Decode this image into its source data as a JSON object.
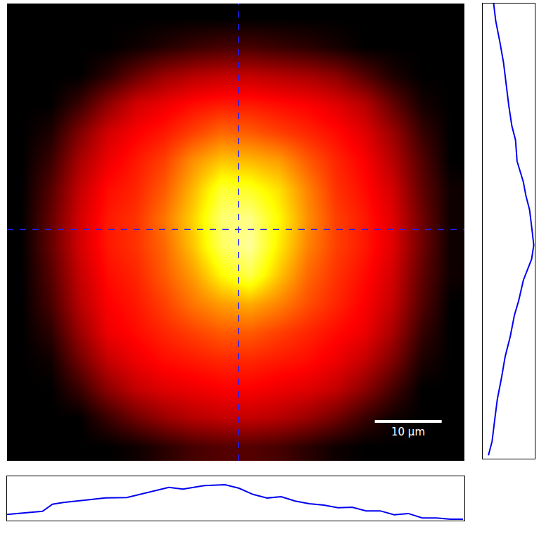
{
  "chart_data": {
    "type": "heatmap",
    "tick_labels": false,
    "xlim": [
      0,
      68.4
    ],
    "ylim": [
      68.4,
      0
    ],
    "zlim": [
      0,
      1
    ],
    "x": [
      2.14,
      6.41,
      10.69,
      14.96,
      19.24,
      23.51,
      27.79,
      32.06,
      36.34,
      40.61,
      44.89,
      49.16,
      53.44,
      57.71,
      61.99,
      66.26
    ],
    "y": [
      2.14,
      6.41,
      10.69,
      14.96,
      19.24,
      23.51,
      27.79,
      32.06,
      36.34,
      40.61,
      44.89,
      49.16,
      53.44,
      57.71,
      61.99,
      66.26
    ],
    "cells": [
      [
        0,
        0,
        0,
        0,
        0,
        0,
        0,
        0,
        0,
        0,
        0,
        0,
        0,
        0,
        0,
        0
      ],
      [
        0,
        0,
        0,
        0,
        0.02,
        0.05,
        0.08,
        0.1,
        0.1,
        0.08,
        0.06,
        0.03,
        0,
        0,
        0,
        0
      ],
      [
        0,
        0,
        0,
        0.06,
        0.15,
        0.22,
        0.26,
        0.28,
        0.28,
        0.26,
        0.24,
        0.2,
        0.12,
        0.04,
        0,
        0
      ],
      [
        0,
        0,
        0.08,
        0.2,
        0.3,
        0.34,
        0.38,
        0.4,
        0.4,
        0.38,
        0.36,
        0.32,
        0.26,
        0.14,
        0.03,
        0
      ],
      [
        0,
        0.04,
        0.18,
        0.3,
        0.36,
        0.4,
        0.46,
        0.52,
        0.5,
        0.46,
        0.42,
        0.38,
        0.32,
        0.22,
        0.08,
        0
      ],
      [
        0,
        0.08,
        0.24,
        0.34,
        0.4,
        0.46,
        0.58,
        0.66,
        0.64,
        0.6,
        0.5,
        0.42,
        0.36,
        0.26,
        0.12,
        0
      ],
      [
        0,
        0.12,
        0.28,
        0.38,
        0.42,
        0.5,
        0.64,
        0.8,
        0.78,
        0.7,
        0.56,
        0.44,
        0.38,
        0.3,
        0.14,
        0.02
      ],
      [
        0,
        0.14,
        0.3,
        0.4,
        0.44,
        0.54,
        0.68,
        0.86,
        0.88,
        0.74,
        0.58,
        0.46,
        0.4,
        0.32,
        0.16,
        0.02
      ],
      [
        0,
        0.14,
        0.3,
        0.4,
        0.44,
        0.52,
        0.66,
        0.84,
        0.9,
        0.72,
        0.56,
        0.46,
        0.4,
        0.32,
        0.16,
        0.02
      ],
      [
        0,
        0.12,
        0.28,
        0.38,
        0.42,
        0.5,
        0.6,
        0.74,
        0.82,
        0.66,
        0.52,
        0.44,
        0.38,
        0.3,
        0.14,
        0.02
      ],
      [
        0,
        0.1,
        0.26,
        0.36,
        0.4,
        0.46,
        0.54,
        0.6,
        0.62,
        0.56,
        0.48,
        0.42,
        0.36,
        0.28,
        0.12,
        0
      ],
      [
        0,
        0.06,
        0.22,
        0.34,
        0.38,
        0.42,
        0.46,
        0.5,
        0.5,
        0.46,
        0.42,
        0.38,
        0.34,
        0.24,
        0.08,
        0
      ],
      [
        0,
        0.02,
        0.16,
        0.28,
        0.34,
        0.38,
        0.4,
        0.42,
        0.42,
        0.4,
        0.38,
        0.34,
        0.28,
        0.18,
        0.04,
        0
      ],
      [
        0,
        0,
        0.08,
        0.2,
        0.28,
        0.32,
        0.34,
        0.36,
        0.36,
        0.34,
        0.32,
        0.28,
        0.2,
        0.1,
        0,
        0
      ],
      [
        0,
        0,
        0,
        0.08,
        0.16,
        0.22,
        0.26,
        0.28,
        0.28,
        0.26,
        0.22,
        0.16,
        0.08,
        0.02,
        0,
        0
      ],
      [
        0,
        0,
        0,
        0,
        0.02,
        0.06,
        0.1,
        0.12,
        0.12,
        0.1,
        0.06,
        0.02,
        0,
        0,
        0,
        0
      ]
    ],
    "crosshair": {
      "x": 34.6,
      "y": 33.8,
      "color": "#1f1fff",
      "line_style": "dash"
    },
    "scale_bar": {
      "x": 55.0,
      "y": 62.5,
      "length": 10,
      "label": "10 µm",
      "color": "#ffffff"
    },
    "x_profile": {
      "x": [
        0,
        2.1,
        5.3,
        6.8,
        8.4,
        11.6,
        14.7,
        17.9,
        21.0,
        24.2,
        26.3,
        29.5,
        32.6,
        34.7,
        36.8,
        38.9,
        41.0,
        43.1,
        45.2,
        47.4,
        49.5,
        51.6,
        53.7,
        55.8,
        57.9,
        60.0,
        62.1,
        64.2,
        66.3,
        68.2
      ],
      "values": [
        0.14,
        0.17,
        0.21,
        0.37,
        0.41,
        0.46,
        0.51,
        0.52,
        0.63,
        0.75,
        0.71,
        0.79,
        0.81,
        0.73,
        0.59,
        0.51,
        0.54,
        0.44,
        0.38,
        0.35,
        0.29,
        0.3,
        0.22,
        0.22,
        0.13,
        0.16,
        0.06,
        0.06,
        0.03,
        0.03
      ],
      "ylim": [
        0,
        1
      ],
      "color": "#0000ee"
    },
    "y_profile": {
      "y": [
        0,
        2.6,
        5.8,
        8.9,
        12.1,
        15.3,
        18.4,
        20.5,
        23.7,
        26.8,
        28.9,
        31.0,
        34.2,
        36.3,
        38.4,
        41.6,
        44.7,
        46.8,
        50.0,
        53.1,
        56.3,
        59.5,
        62.6,
        65.8,
        67.9
      ],
      "values": [
        0.21,
        0.25,
        0.33,
        0.4,
        0.45,
        0.5,
        0.56,
        0.63,
        0.66,
        0.78,
        0.83,
        0.9,
        0.95,
        0.98,
        0.94,
        0.78,
        0.69,
        0.61,
        0.53,
        0.43,
        0.36,
        0.28,
        0.23,
        0.18,
        0.11
      ],
      "xlim": [
        0,
        1
      ],
      "color": "#0000ee"
    }
  }
}
